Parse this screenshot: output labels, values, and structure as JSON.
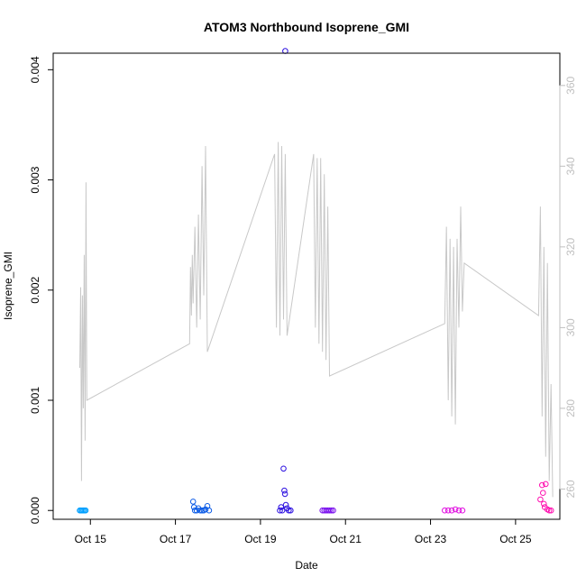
{
  "chart_data": {
    "type": "scatter",
    "title": "ATOM3 Northbound Isoprene_GMI",
    "xlabel": "Date",
    "ylabel": "Isoprene_GMI",
    "y2label": "",
    "x_scale": "date",
    "xlim": [
      "2016-10-14T03:00",
      "2016-10-26T01:00"
    ],
    "ylim": [
      -8e-05,
      0.00415
    ],
    "y2lim": [
      252.5,
      368
    ],
    "x_ticks": [
      {
        "date": "2016-10-15",
        "label": "Oct 15"
      },
      {
        "date": "2016-10-17",
        "label": "Oct 17"
      },
      {
        "date": "2016-10-19",
        "label": "Oct 19"
      },
      {
        "date": "2016-10-21",
        "label": "Oct 21"
      },
      {
        "date": "2016-10-23",
        "label": "Oct 23"
      },
      {
        "date": "2016-10-25",
        "label": "Oct 25"
      }
    ],
    "y_ticks": [
      {
        "value": 0.0,
        "label": "0.000"
      },
      {
        "value": 0.001,
        "label": "0.001"
      },
      {
        "value": 0.002,
        "label": "0.002"
      },
      {
        "value": 0.003,
        "label": "0.003"
      },
      {
        "value": 0.004,
        "label": "0.004"
      }
    ],
    "y2_ticks": [
      {
        "value": 260,
        "label": "260"
      },
      {
        "value": 280,
        "label": "280"
      },
      {
        "value": 300,
        "label": "300"
      },
      {
        "value": 320,
        "label": "320"
      },
      {
        "value": 340,
        "label": "340"
      },
      {
        "value": 360,
        "label": "360"
      }
    ],
    "grid": false,
    "legend": "none",
    "colors": {
      "line": "#c8c8c8",
      "axis": "#000000",
      "right_axis": "#bfbfbf"
    },
    "series": [
      {
        "color": "#00a0ff",
        "points": [
          [
            "2016-10-14T18:00",
            0.0
          ],
          [
            "2016-10-14T18:40",
            0.0
          ],
          [
            "2016-10-14T19:20",
            0.0
          ],
          [
            "2016-10-14T20:00",
            0.0
          ],
          [
            "2016-10-14T20:40",
            0.0
          ],
          [
            "2016-10-14T21:20",
            0.0
          ]
        ]
      },
      {
        "color": "#0a5ae6",
        "points": [
          [
            "2016-10-17T10:00",
            8e-05
          ],
          [
            "2016-10-17T10:30",
            3e-05
          ],
          [
            "2016-10-17T11:00",
            0.0
          ],
          [
            "2016-10-17T12:00",
            0.0
          ],
          [
            "2016-10-17T13:00",
            2e-05
          ],
          [
            "2016-10-17T14:00",
            0.0
          ],
          [
            "2016-10-17T15:00",
            0.0
          ],
          [
            "2016-10-17T16:00",
            0.0
          ],
          [
            "2016-10-17T17:00",
            1e-05
          ],
          [
            "2016-10-17T18:00",
            4e-05
          ],
          [
            "2016-10-17T19:00",
            0.0
          ]
        ]
      },
      {
        "color": "#2a0ee0",
        "points": [
          [
            "2016-10-19T11:00",
            0.0
          ],
          [
            "2016-10-19T11:40",
            3e-05
          ],
          [
            "2016-10-19T12:20",
            0.0
          ],
          [
            "2016-10-19T13:00",
            0.00038
          ],
          [
            "2016-10-19T13:30",
            0.00018
          ],
          [
            "2016-10-19T13:50",
            0.00015
          ],
          [
            "2016-10-19T14:00",
            0.00417
          ],
          [
            "2016-10-19T14:20",
            5e-05
          ],
          [
            "2016-10-19T15:00",
            2e-05
          ],
          [
            "2016-10-19T16:00",
            0.0
          ],
          [
            "2016-10-19T17:00",
            0.0
          ]
        ]
      },
      {
        "color": "#7a10ee",
        "points": [
          [
            "2016-10-20T11:00",
            0.0
          ],
          [
            "2016-10-20T12:00",
            0.0
          ],
          [
            "2016-10-20T13:00",
            0.0
          ],
          [
            "2016-10-20T14:00",
            0.0
          ],
          [
            "2016-10-20T15:00",
            0.0
          ],
          [
            "2016-10-20T16:00",
            0.0
          ],
          [
            "2016-10-20T17:00",
            0.0
          ]
        ]
      },
      {
        "color": "#e010e0",
        "points": [
          [
            "2016-10-23T08:00",
            0.0
          ],
          [
            "2016-10-23T10:00",
            0.0
          ],
          [
            "2016-10-23T12:00",
            0.0
          ],
          [
            "2016-10-23T14:00",
            1e-05
          ],
          [
            "2016-10-23T16:00",
            0.0
          ],
          [
            "2016-10-23T18:00",
            0.0
          ]
        ]
      },
      {
        "color": "#ff10b0",
        "points": [
          [
            "2016-10-25T14:00",
            0.0001
          ],
          [
            "2016-10-25T15:00",
            0.00023
          ],
          [
            "2016-10-25T15:30",
            0.00016
          ],
          [
            "2016-10-25T16:00",
            6e-05
          ],
          [
            "2016-10-25T16:30",
            3e-05
          ],
          [
            "2016-10-25T17:00",
            0.00024
          ],
          [
            "2016-10-25T18:00",
            1e-05
          ],
          [
            "2016-10-25T19:00",
            0.0
          ],
          [
            "2016-10-25T20:00",
            0.0
          ]
        ]
      }
    ],
    "secondary_line": {
      "axis": "right",
      "color": "#c8c8c8",
      "points": [
        [
          "2016-10-14T18:00",
          290
        ],
        [
          "2016-10-14T18:30",
          310
        ],
        [
          "2016-10-14T19:00",
          262
        ],
        [
          "2016-10-14T19:30",
          308
        ],
        [
          "2016-10-14T20:00",
          280
        ],
        [
          "2016-10-14T20:30",
          318
        ],
        [
          "2016-10-14T21:00",
          272
        ],
        [
          "2016-10-14T21:30",
          336
        ],
        [
          "2016-10-14T22:00",
          282
        ],
        [
          "2016-10-17T08:00",
          296
        ],
        [
          "2016-10-17T08:30",
          315
        ],
        [
          "2016-10-17T09:00",
          303
        ],
        [
          "2016-10-17T09:30",
          318
        ],
        [
          "2016-10-17T10:00",
          306
        ],
        [
          "2016-10-17T11:00",
          325
        ],
        [
          "2016-10-17T12:00",
          300
        ],
        [
          "2016-10-17T13:00",
          328
        ],
        [
          "2016-10-17T14:00",
          302
        ],
        [
          "2016-10-17T15:00",
          340
        ],
        [
          "2016-10-17T16:00",
          308
        ],
        [
          "2016-10-17T17:00",
          345
        ],
        [
          "2016-10-17T18:00",
          294
        ],
        [
          "2016-10-19T08:00",
          343
        ],
        [
          "2016-10-19T09:00",
          300
        ],
        [
          "2016-10-19T10:00",
          346
        ],
        [
          "2016-10-19T11:00",
          298
        ],
        [
          "2016-10-19T12:00",
          345
        ],
        [
          "2016-10-19T13:00",
          302
        ],
        [
          "2016-10-19T14:00",
          343
        ],
        [
          "2016-10-19T15:00",
          298
        ],
        [
          "2016-10-20T06:00",
          343
        ],
        [
          "2016-10-20T07:00",
          300
        ],
        [
          "2016-10-20T08:00",
          342
        ],
        [
          "2016-10-20T09:00",
          296
        ],
        [
          "2016-10-20T10:00",
          342
        ],
        [
          "2016-10-20T11:00",
          294
        ],
        [
          "2016-10-20T12:00",
          338
        ],
        [
          "2016-10-20T13:00",
          292
        ],
        [
          "2016-10-20T14:00",
          330
        ],
        [
          "2016-10-20T15:00",
          288
        ],
        [
          "2016-10-23T08:00",
          301
        ],
        [
          "2016-10-23T09:00",
          325
        ],
        [
          "2016-10-23T10:00",
          282
        ],
        [
          "2016-10-23T11:00",
          322
        ],
        [
          "2016-10-23T12:00",
          278
        ],
        [
          "2016-10-23T13:00",
          320
        ],
        [
          "2016-10-23T14:00",
          276
        ],
        [
          "2016-10-23T15:00",
          322
        ],
        [
          "2016-10-23T16:00",
          300
        ],
        [
          "2016-10-23T17:00",
          330
        ],
        [
          "2016-10-23T18:00",
          304
        ],
        [
          "2016-10-23T19:00",
          316
        ],
        [
          "2016-10-25T13:00",
          303
        ],
        [
          "2016-10-25T14:00",
          330
        ],
        [
          "2016-10-25T15:00",
          278
        ],
        [
          "2016-10-25T16:00",
          320
        ],
        [
          "2016-10-25T17:00",
          268
        ],
        [
          "2016-10-25T18:00",
          316
        ],
        [
          "2016-10-25T19:00",
          262
        ],
        [
          "2016-10-25T20:00",
          286
        ],
        [
          "2016-10-25T21:00",
          258
        ]
      ]
    }
  }
}
